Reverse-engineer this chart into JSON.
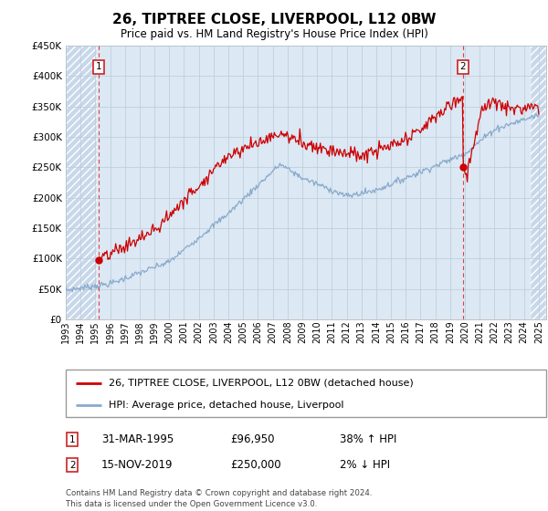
{
  "title": "26, TIPTREE CLOSE, LIVERPOOL, L12 0BW",
  "subtitle": "Price paid vs. HM Land Registry's House Price Index (HPI)",
  "ylim": [
    0,
    450000
  ],
  "yticks": [
    0,
    50000,
    100000,
    150000,
    200000,
    250000,
    300000,
    350000,
    400000,
    450000
  ],
  "legend_line1": "26, TIPTREE CLOSE, LIVERPOOL, L12 0BW (detached house)",
  "legend_line2": "HPI: Average price, detached house, Liverpool",
  "point1_label": "1",
  "point1_date": "31-MAR-1995",
  "point1_price": "£96,950",
  "point1_hpi": "38% ↑ HPI",
  "point2_label": "2",
  "point2_date": "15-NOV-2019",
  "point2_price": "£250,000",
  "point2_hpi": "2% ↓ HPI",
  "footer": "Contains HM Land Registry data © Crown copyright and database right 2024.\nThis data is licensed under the Open Government Licence v3.0.",
  "sale1_x": 1995.25,
  "sale1_y": 96950,
  "sale2_x": 2019.88,
  "sale2_y": 250000,
  "xmin": 1993.0,
  "xmax": 2025.5,
  "hatch_xend": 1995.1,
  "hatch_xstart2": 2024.45,
  "bg_plot": "#dce8f4",
  "bg_hatch": "#c8d8ea",
  "line_price_color": "#cc0000",
  "line_hpi_color": "#88aacc",
  "point_color": "#cc0000",
  "vline_color": "#dd4444",
  "box_edge_color": "#cc2222",
  "grid_color": "#b8ccd8"
}
